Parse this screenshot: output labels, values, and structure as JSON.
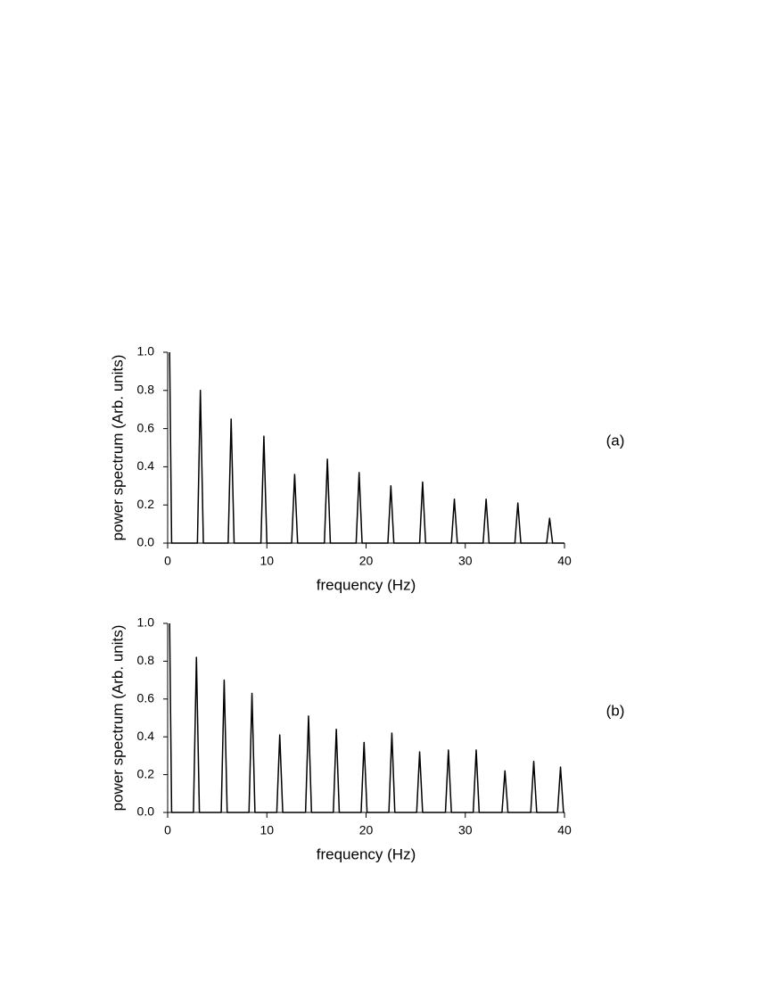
{
  "chart_data": [
    {
      "type": "line",
      "xlabel": "frequency (Hz)",
      "ylabel": "power spectrum (Arb. units)",
      "label": "(a)",
      "x": [
        0.2,
        0.4,
        3.0,
        3.3,
        3.6,
        6.1,
        6.4,
        6.7,
        9.4,
        9.7,
        10.0,
        12.5,
        12.8,
        13.1,
        15.8,
        16.1,
        16.4,
        19.0,
        19.3,
        19.6,
        22.2,
        22.5,
        22.8,
        25.4,
        25.7,
        26.0,
        28.6,
        28.9,
        29.2,
        31.8,
        32.1,
        32.4,
        35.0,
        35.3,
        35.6,
        38.2,
        38.5,
        38.8,
        40
      ],
      "values": [
        1.0,
        0,
        0,
        0.8,
        0,
        0,
        0.65,
        0,
        0,
        0.56,
        0,
        0,
        0.36,
        0,
        0,
        0.44,
        0,
        0,
        0.37,
        0,
        0,
        0.3,
        0,
        0,
        0.32,
        0,
        0,
        0.23,
        0,
        0,
        0.23,
        0,
        0,
        0.21,
        0,
        0,
        0.13,
        0,
        0
      ],
      "color": "#000000",
      "xlim": [
        0,
        40
      ],
      "xticks": [
        0,
        10,
        20,
        30,
        40
      ],
      "ylim": [
        0,
        1
      ],
      "yticks": [
        {
          "value": 0,
          "label": "0.0"
        },
        0.2,
        0.4,
        0.6,
        0.8,
        {
          "value": 1,
          "label": "1.0"
        }
      ]
    },
    {
      "type": "line",
      "xlabel": "frequency (Hz)",
      "ylabel": "power spectrum (Arb. units)",
      "label": "(b)",
      "x": [
        0.2,
        0.4,
        2.6,
        2.9,
        3.2,
        5.4,
        5.7,
        6.0,
        8.2,
        8.5,
        8.8,
        11.0,
        11.3,
        11.6,
        13.9,
        14.2,
        14.5,
        16.7,
        17.0,
        17.3,
        19.5,
        19.8,
        20.1,
        22.3,
        22.6,
        22.9,
        25.1,
        25.4,
        25.7,
        28.0,
        28.3,
        28.6,
        30.8,
        31.1,
        31.4,
        33.7,
        34.0,
        34.3,
        36.6,
        36.9,
        37.2,
        39.3,
        39.6,
        39.9,
        40
      ],
      "values": [
        1.0,
        0,
        0,
        0.82,
        0,
        0,
        0.7,
        0,
        0,
        0.63,
        0,
        0,
        0.41,
        0,
        0,
        0.51,
        0,
        0,
        0.44,
        0,
        0,
        0.37,
        0,
        0,
        0.42,
        0,
        0,
        0.32,
        0,
        0,
        0.33,
        0,
        0,
        0.33,
        0,
        0,
        0.22,
        0,
        0,
        0.27,
        0,
        0,
        0.24,
        0,
        0
      ],
      "color": "#000000",
      "xlim": [
        0,
        40
      ],
      "xticks": [
        0,
        10,
        20,
        30,
        40
      ],
      "ylim": [
        0,
        1
      ],
      "yticks": [
        {
          "value": 0,
          "label": "0.0"
        },
        0.2,
        0.4,
        0.6,
        0.8,
        {
          "value": 1,
          "label": "1.0"
        }
      ]
    }
  ]
}
